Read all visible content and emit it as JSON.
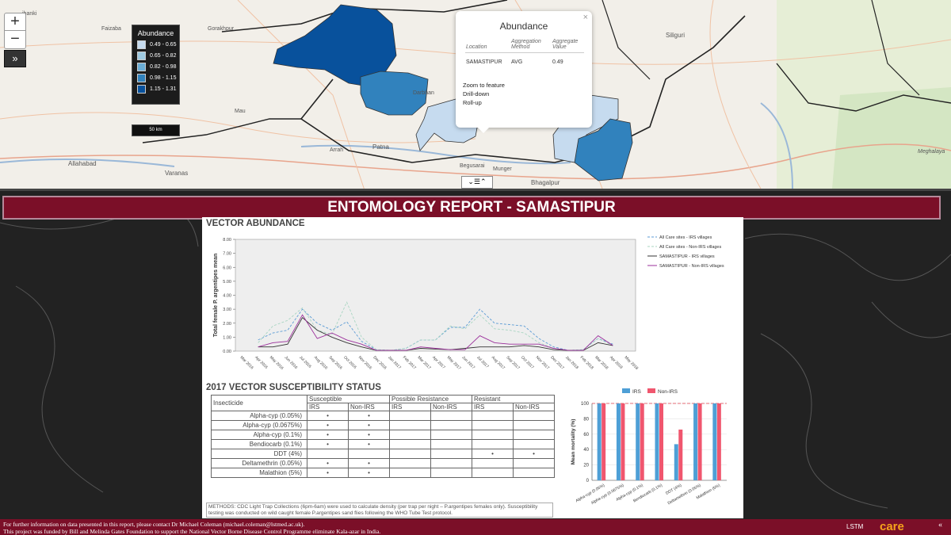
{
  "map": {
    "zoom_in": "+",
    "zoom_out": "−",
    "expand": "»",
    "toggle": "⌄☰⌃",
    "labels": [
      "ibanki",
      "Faizaba",
      "Gorakhpur",
      "Mau",
      "Arrah",
      "Patna",
      "Allahabad",
      "Varanas",
      "Darbhan",
      "Begusarai",
      "Munger",
      "Bhagalpur",
      "Siliguri",
      "Meghalaya"
    ],
    "legend": {
      "title": "Abundance",
      "items": [
        {
          "label": "0.49 - 0.65",
          "color": "#c6dbef"
        },
        {
          "label": "0.65 - 0.82",
          "color": "#9ecae1"
        },
        {
          "label": "0.82 - 0.98",
          "color": "#6baed6"
        },
        {
          "label": "0.98 - 1.15",
          "color": "#3182bd"
        },
        {
          "label": "1.15 - 1.31",
          "color": "#08519c"
        }
      ]
    },
    "scale_label": "50 km",
    "popup": {
      "title": "Abundance",
      "close": "×",
      "col_location": "Location",
      "col_method": "Aggregation Method",
      "col_value": "Aggregate Value",
      "location": "SAMASTIPUR",
      "method": "AVG",
      "value": "0.49",
      "links": [
        "Zoom to feature",
        "Drill-down",
        "Roll-up"
      ]
    }
  },
  "report": {
    "header": "ENTOMOLOGY REPORT - SAMASTIPUR",
    "abundance_title": "VECTOR ABUNDANCE",
    "susceptibility_title": "2017 VECTOR SUSCEPTIBILITY STATUS",
    "table": {
      "insecticide_header": "Insecticide",
      "groups": [
        "Susceptible",
        "Possible Resistance",
        "Resistant"
      ],
      "subheaders": [
        "IRS",
        "Non-IRS",
        "IRS",
        "Non-IRS",
        "IRS",
        "Non-IRS"
      ],
      "rows": [
        {
          "name": "Alpha-cyp (0.05%)",
          "marks": [
            "•",
            "•",
            "",
            "",
            "",
            ""
          ]
        },
        {
          "name": "Alpha-cyp (0.0675%)",
          "marks": [
            "•",
            "•",
            "",
            "",
            "",
            ""
          ]
        },
        {
          "name": "Alpha-cyp (0.1%)",
          "marks": [
            "•",
            "•",
            "",
            "",
            "",
            ""
          ]
        },
        {
          "name": "Bendiocarb (0.1%)",
          "marks": [
            "•",
            "•",
            "",
            "",
            "",
            ""
          ]
        },
        {
          "name": "DDT (4%)",
          "marks": [
            "",
            "",
            "",
            "",
            "•",
            "•"
          ]
        },
        {
          "name": "Deltamethrin (0.05%)",
          "marks": [
            "•",
            "•",
            "",
            "",
            "",
            ""
          ]
        },
        {
          "name": "Malathion (5%)",
          "marks": [
            "•",
            "•",
            "",
            "",
            "",
            ""
          ]
        }
      ]
    },
    "methods": "METHODS: CDC Light Trap Collections (6pm-6am) were used to calculate density (per trap per night – P.argentipes females only).  Susceptibility testing was conducted on wild caught female P.argentipes sand flies following the WHO Tube Test protocol."
  },
  "footer": {
    "line1": "For further information on data presented in this report, please contact Dr Michael Coleman (michael.coleman@lstmed.ac.uk).",
    "line2": "This project was funded by Bill and Melinda Gates Foundation to support the National Vector Borne Disease Control Programme eliminate Kala-azar in India.",
    "lstm": "LSTM",
    "care": "care",
    "corner": "«"
  },
  "chart_data": [
    {
      "type": "line",
      "title": "VECTOR ABUNDANCE",
      "ylabel": "Total female P. argentipes mean",
      "ylim": [
        0,
        8
      ],
      "yticks": [
        "0.00",
        "1.00",
        "2.00",
        "3.00",
        "4.00",
        "5.00",
        "6.00",
        "7.00",
        "8.00"
      ],
      "categories": [
        "Mar 2016",
        "Apr 2016",
        "May 2016",
        "Jun 2016",
        "Jul 2016",
        "Aug 2016",
        "Sep 2016",
        "Oct 2016",
        "Nov 2016",
        "Dec 2016",
        "Jan 2017",
        "Feb 2017",
        "Mar 2017",
        "Apr 2017",
        "May 2017",
        "Jun 2017",
        "Jul 2017",
        "Aug 2017",
        "Sep 2017",
        "Oct 2017",
        "Nov 2017",
        "Dec 2017",
        "Jan 2018",
        "Feb 2018",
        "Mar 2018",
        "Apr 2018",
        "May 2018"
      ],
      "legend_position": "top-right",
      "series": [
        {
          "name": "All Care sites - IRS villages",
          "color": "#5b9bd5",
          "dash": true,
          "values": [
            null,
            0.8,
            1.3,
            1.5,
            3.0,
            2.0,
            1.5,
            2.1,
            0.7,
            0.1,
            0.05,
            0.2,
            0.8,
            0.8,
            1.7,
            1.7,
            3.0,
            2.0,
            1.9,
            1.8,
            0.9,
            0.3,
            0.05,
            0.1,
            0.9,
            0.5,
            null
          ]
        },
        {
          "name": "All Care sites - Non-IRS villages",
          "color": "#a8d5c2",
          "dash": true,
          "values": [
            null,
            0.6,
            1.8,
            2.2,
            3.1,
            1.5,
            1.2,
            3.5,
            1.0,
            0.1,
            0.05,
            0.2,
            0.8,
            0.8,
            1.8,
            1.6,
            2.6,
            1.6,
            1.5,
            1.3,
            0.6,
            0.2,
            0.05,
            0.1,
            0.9,
            0.4,
            null
          ]
        },
        {
          "name": "SAMASTIPUR - IRS villages",
          "color": "#333333",
          "dash": false,
          "values": [
            null,
            0.3,
            0.3,
            0.5,
            2.4,
            1.5,
            1.0,
            0.6,
            0.3,
            0.05,
            0.05,
            0.05,
            0.2,
            0.15,
            0.1,
            0.2,
            0.3,
            0.3,
            0.3,
            0.4,
            0.3,
            0.1,
            0.05,
            0.05,
            0.6,
            0.4,
            null
          ]
        },
        {
          "name": "SAMASTIPUR - Non-IRS villages",
          "color": "#9b2f9b",
          "dash": false,
          "values": [
            null,
            0.3,
            0.6,
            0.7,
            2.6,
            0.9,
            1.3,
            0.8,
            0.5,
            0.05,
            0.05,
            0.05,
            0.3,
            0.2,
            0.1,
            0.1,
            1.1,
            0.6,
            0.5,
            0.5,
            0.5,
            0.2,
            0.05,
            0.05,
            1.1,
            0.4,
            null
          ]
        }
      ]
    },
    {
      "type": "bar",
      "ylabel": "Mean mortality (%)",
      "ylim": [
        0,
        100
      ],
      "yticks": [
        "0",
        "20",
        "40",
        "60",
        "80",
        "100"
      ],
      "categories": [
        "Alpha-cyp (0.05%)",
        "Alpha-cyp (0.0675%)",
        "Alpha-cyp (0.1%)",
        "Bendiocarb (0.1%)",
        "DDT (4%)",
        "Deltamethrin (0.05%)",
        "Malathion (5%)"
      ],
      "legend_position": "top",
      "series": [
        {
          "name": "IRS",
          "color": "#4e9fd6",
          "values": [
            100,
            100,
            100,
            100,
            47,
            100,
            100
          ]
        },
        {
          "name": "Non-IRS",
          "color": "#f0566e",
          "values": [
            100,
            100,
            100,
            100,
            66,
            100,
            100
          ]
        }
      ]
    }
  ]
}
